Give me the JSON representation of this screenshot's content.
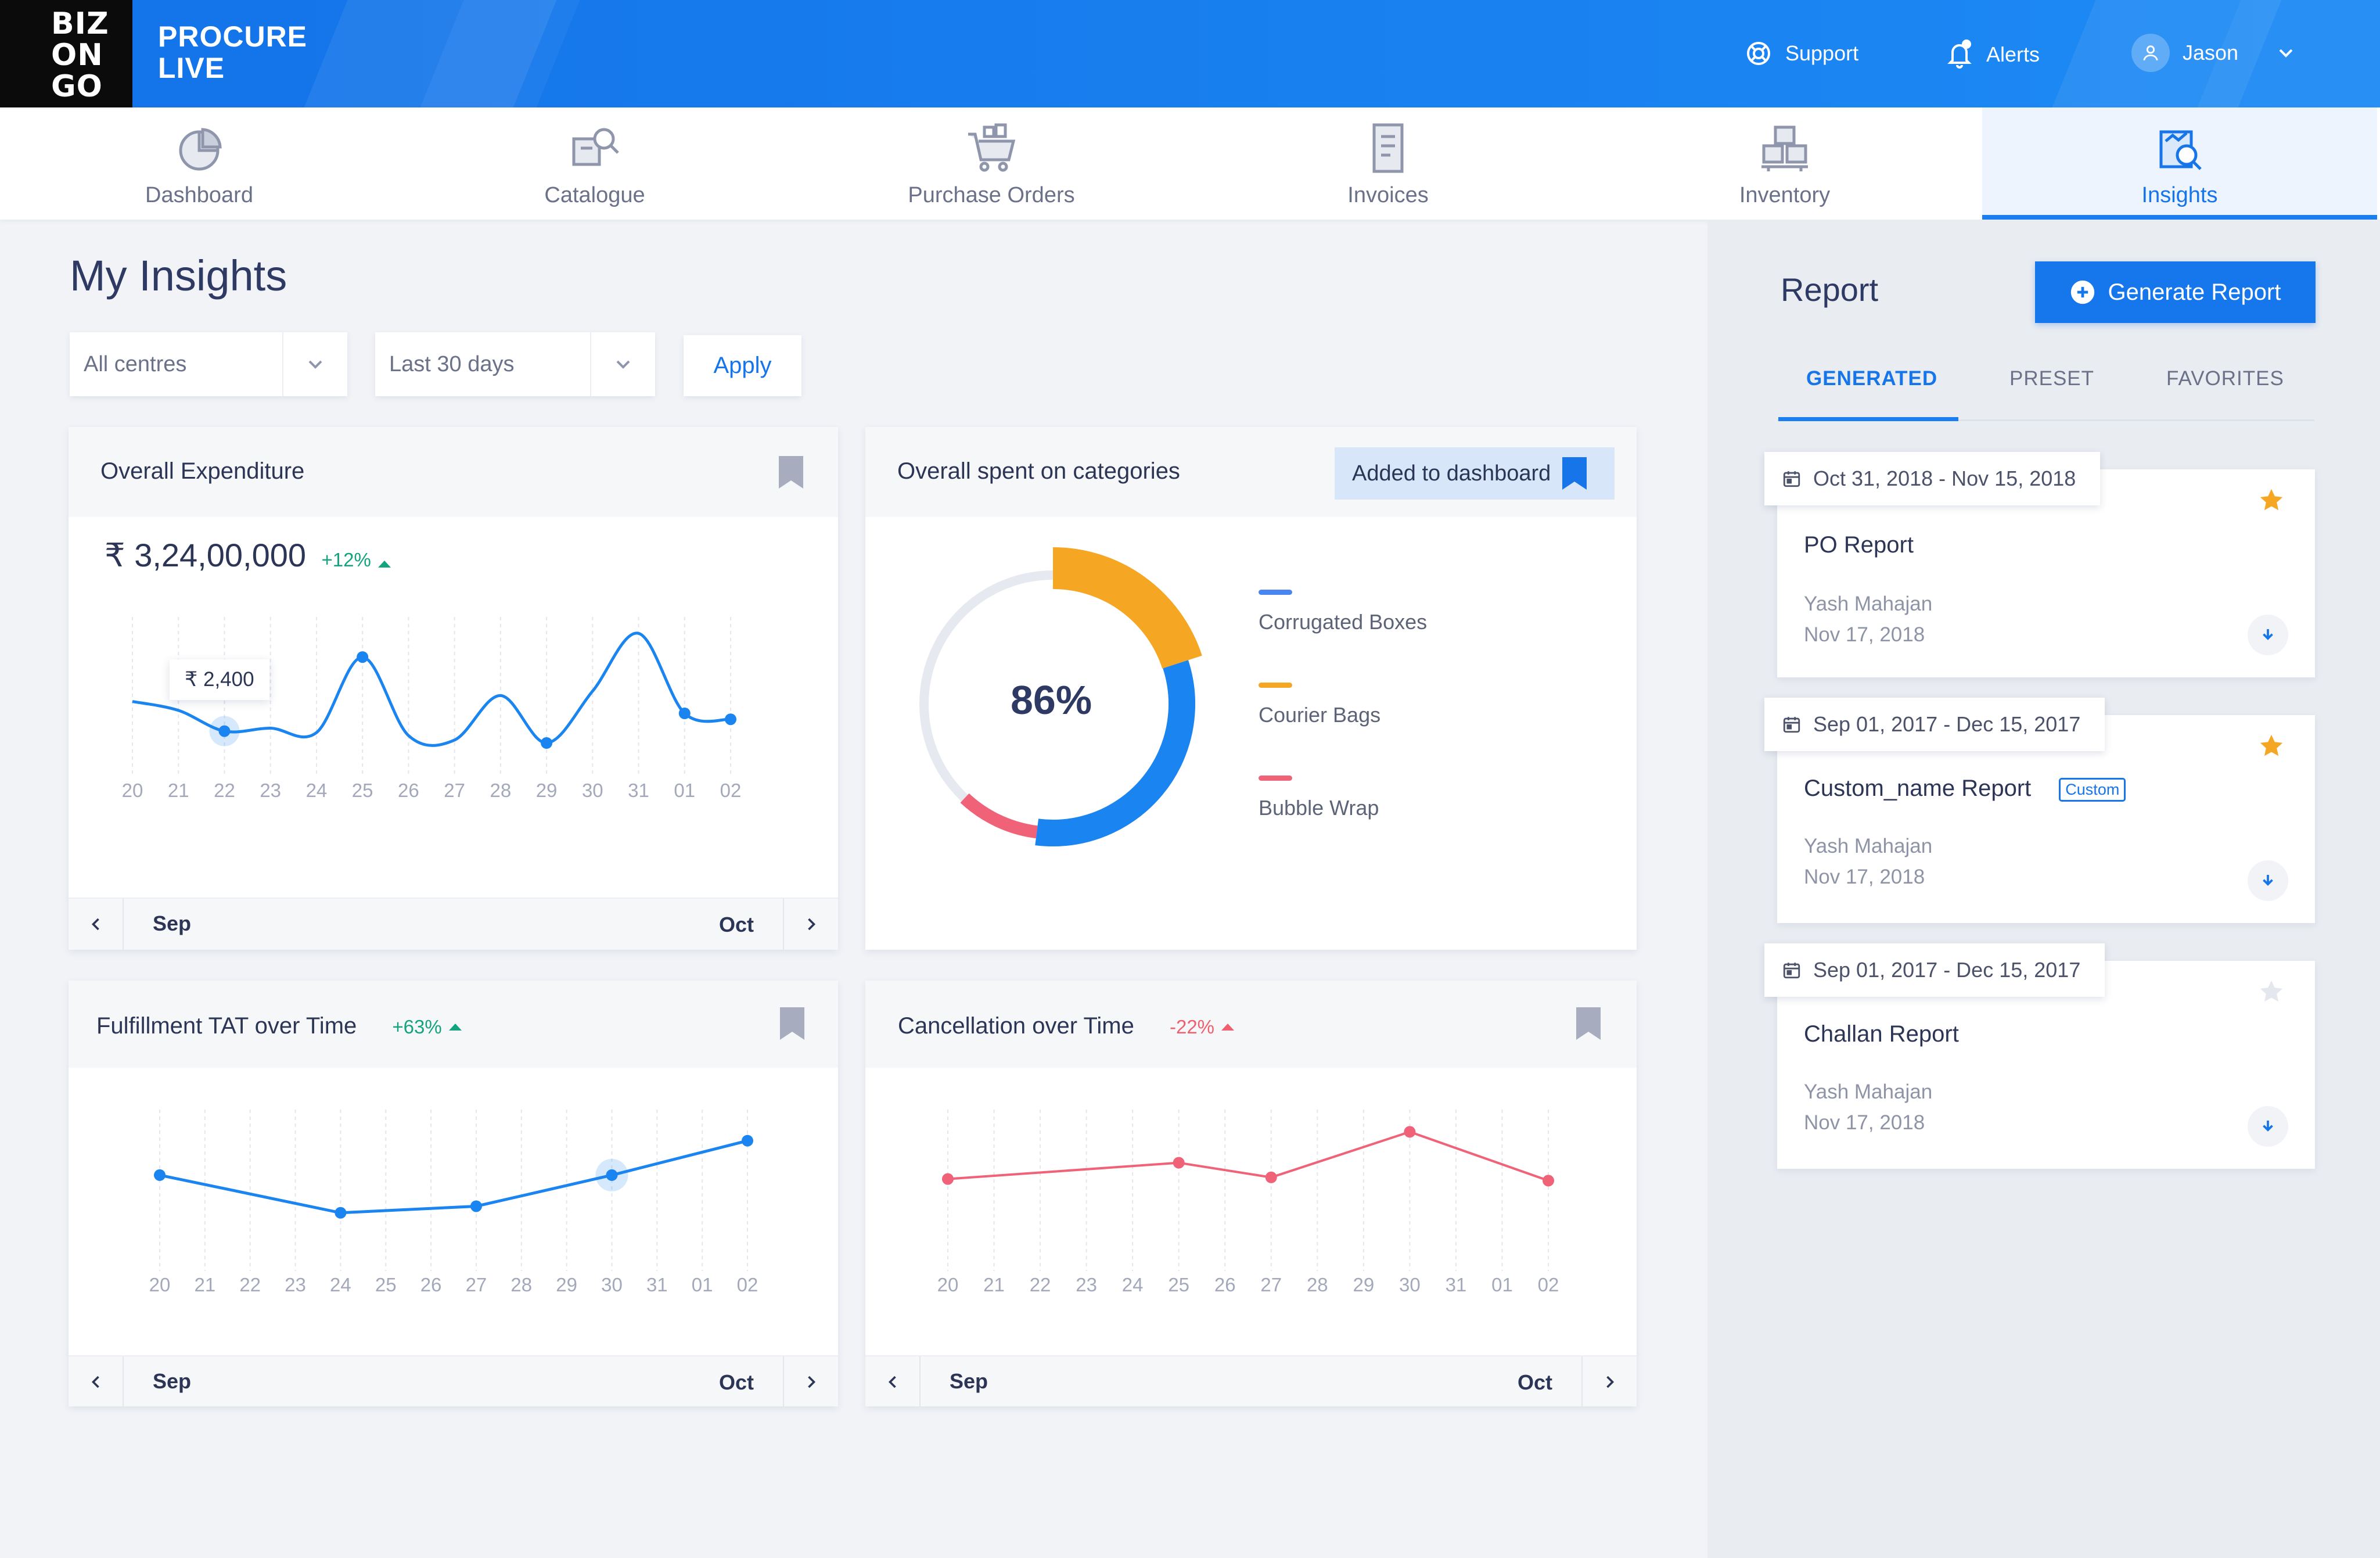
{
  "app": {
    "logo_text": "BIZ ON GO",
    "logo_lines": [
      "BIZ",
      "ON",
      "GO"
    ],
    "brand_line1": "PROCURE",
    "brand_line2": "LIVE"
  },
  "topbar": {
    "support": "Support",
    "alerts": "Alerts",
    "user": "Jason"
  },
  "nav": {
    "tabs": [
      {
        "label": "Dashboard",
        "icon": "dashboard-pie-icon"
      },
      {
        "label": "Catalogue",
        "icon": "catalogue-search-icon"
      },
      {
        "label": "Purchase Orders",
        "icon": "cart-icon"
      },
      {
        "label": "Invoices",
        "icon": "invoice-icon"
      },
      {
        "label": "Inventory",
        "icon": "inventory-boxes-icon"
      },
      {
        "label": "Insights",
        "icon": "insights-icon",
        "active": true
      }
    ]
  },
  "page": {
    "title": "My Insights"
  },
  "filters": {
    "centres": "All centres",
    "period": "Last 30 days",
    "apply": "Apply"
  },
  "expenditure": {
    "title": "Overall Expenditure",
    "amount": "₹ 3,24,00,000",
    "delta": "+12%",
    "tooltip": "₹ 2,400",
    "month_start": "Sep",
    "month_end": "Oct"
  },
  "categories": {
    "title": "Overall spent on categories",
    "badge": "Added to dashboard",
    "center_value": "86%",
    "legend": [
      {
        "label": "Corrugated Boxes",
        "color": "#4a86f2"
      },
      {
        "label": "Courier Bags",
        "color": "#f5a623"
      },
      {
        "label": "Bubble Wrap",
        "color": "#f06277"
      }
    ]
  },
  "fulfillment": {
    "title": "Fulfillment TAT over Time",
    "delta": "+63%",
    "month_start": "Sep",
    "month_end": "Oct"
  },
  "cancellation": {
    "title": "Cancellation over Time",
    "delta": "-22%",
    "month_start": "Sep",
    "month_end": "Oct"
  },
  "report": {
    "title": "Report",
    "generate": "Generate Report",
    "tabs": [
      "GENERATED",
      "PRESET",
      "FAVORITES"
    ],
    "cards": [
      {
        "date": "Oct 31, 2018 - Nov 15, 2018",
        "name": "PO Report",
        "tag": "",
        "author": "Yash Mahajan",
        "created": "Nov 17, 2018",
        "favorite": true
      },
      {
        "date": "Sep 01, 2017 - Dec 15, 2017",
        "name": "Custom_name Report",
        "tag": "Custom",
        "author": "Yash Mahajan",
        "created": "Nov 17, 2018",
        "favorite": true
      },
      {
        "date": "Sep 01, 2017 - Dec 15, 2017",
        "name": "Challan Report",
        "tag": "",
        "author": "Yash Mahajan",
        "created": "Nov 17, 2018",
        "favorite": false
      }
    ]
  },
  "colors": {
    "primary": "#1677ec",
    "accent_orange": "#f5a623",
    "positive": "#14a37f",
    "negative": "#ef5f6e"
  },
  "chart_data": [
    {
      "type": "line",
      "title": "Overall Expenditure",
      "x": [
        "20",
        "21",
        "22",
        "23",
        "24",
        "25",
        "26",
        "27",
        "28",
        "29",
        "30",
        "31",
        "01",
        "02"
      ],
      "markers": [
        {
          "x": "22",
          "label": "₹ 2,400"
        },
        {
          "x": "25"
        },
        {
          "x": "29"
        },
        {
          "x": "01"
        },
        {
          "x": "02"
        }
      ],
      "curve_relative": [
        0.48,
        0.42,
        0.28,
        0.3,
        0.27,
        0.78,
        0.25,
        0.22,
        0.52,
        0.2,
        0.55,
        0.94,
        0.4,
        0.36
      ]
    },
    {
      "type": "pie",
      "title": "Overall spent on categories",
      "center_label": "86%",
      "slices": [
        {
          "label": "Corrugated Boxes",
          "share": 0.32
        },
        {
          "label": "Courier Bags",
          "share": 0.2
        },
        {
          "label": "Bubble Wrap",
          "share": 0.1
        }
      ]
    },
    {
      "type": "line",
      "title": "Fulfillment TAT over Time",
      "x": [
        "20",
        "21",
        "22",
        "23",
        "24",
        "25",
        "26",
        "27",
        "28",
        "29",
        "30",
        "31",
        "01",
        "02"
      ],
      "points": [
        {
          "x": "20",
          "y": 0.55
        },
        {
          "x": "24",
          "y": 0.32
        },
        {
          "x": "27",
          "y": 0.36
        },
        {
          "x": "30",
          "y": 0.55
        },
        {
          "x": "02",
          "y": 0.76
        }
      ],
      "highlight": "30"
    },
    {
      "type": "line",
      "title": "Cancellation over Time",
      "x": [
        "20",
        "21",
        "22",
        "23",
        "24",
        "25",
        "26",
        "27",
        "28",
        "29",
        "30",
        "31",
        "01",
        "02"
      ],
      "points": [
        {
          "x": "20",
          "y": 0.53
        },
        {
          "x": "25",
          "y": 0.63
        },
        {
          "x": "27",
          "y": 0.54
        },
        {
          "x": "30",
          "y": 0.82
        },
        {
          "x": "02",
          "y": 0.52
        }
      ]
    }
  ]
}
